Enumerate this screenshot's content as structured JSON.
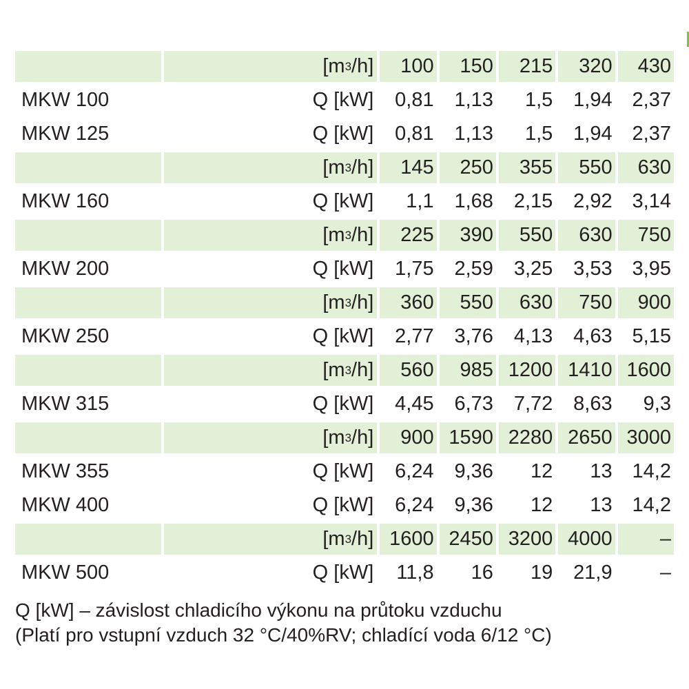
{
  "table": {
    "rows": [
      {
        "shaded": true,
        "model": "",
        "unit": "[m3/h]",
        "values": [
          "100",
          "150",
          "215",
          "320",
          "430"
        ]
      },
      {
        "shaded": false,
        "model": "MKW 100",
        "unit": "Q [kW]",
        "values": [
          "0,81",
          "1,13",
          "1,5",
          "1,94",
          "2,37"
        ]
      },
      {
        "shaded": false,
        "model": "MKW 125",
        "unit": "Q [kW]",
        "values": [
          "0,81",
          "1,13",
          "1,5",
          "1,94",
          "2,37"
        ]
      },
      {
        "shaded": true,
        "model": "",
        "unit": "[m3/h]",
        "values": [
          "145",
          "250",
          "355",
          "550",
          "630"
        ]
      },
      {
        "shaded": false,
        "model": "MKW 160",
        "unit": "Q [kW]",
        "values": [
          "1,1",
          "1,68",
          "2,15",
          "2,92",
          "3,14"
        ]
      },
      {
        "shaded": true,
        "model": "",
        "unit": "[m3/h]",
        "values": [
          "225",
          "390",
          "550",
          "630",
          "750"
        ]
      },
      {
        "shaded": false,
        "model": "MKW 200",
        "unit": "Q [kW]",
        "values": [
          "1,75",
          "2,59",
          "3,25",
          "3,53",
          "3,95"
        ]
      },
      {
        "shaded": true,
        "model": "",
        "unit": "[m3/h]",
        "values": [
          "360",
          "550",
          "630",
          "750",
          "900"
        ]
      },
      {
        "shaded": false,
        "model": "MKW 250",
        "unit": "Q [kW]",
        "values": [
          "2,77",
          "3,76",
          "4,13",
          "4,63",
          "5,15"
        ]
      },
      {
        "shaded": true,
        "model": "",
        "unit": "[m3/h]",
        "values": [
          "560",
          "985",
          "1200",
          "1410",
          "1600"
        ]
      },
      {
        "shaded": false,
        "model": "MKW 315",
        "unit": "Q [kW]",
        "values": [
          "4,45",
          "6,73",
          "7,72",
          "8,63",
          "9,3"
        ]
      },
      {
        "shaded": true,
        "model": "",
        "unit": "[m3/h]",
        "values": [
          "900",
          "1590",
          "2280",
          "2650",
          "3000"
        ]
      },
      {
        "shaded": false,
        "model": "MKW 355",
        "unit": "Q [kW]",
        "values": [
          "6,24",
          "9,36",
          "12",
          "13",
          "14,2"
        ]
      },
      {
        "shaded": false,
        "model": "MKW 400",
        "unit": "Q [kW]",
        "values": [
          "6,24",
          "9,36",
          "12",
          "13",
          "14,2"
        ]
      },
      {
        "shaded": true,
        "model": "",
        "unit": "[m3/h]",
        "values": [
          "1600",
          "2450",
          "3200",
          "4000",
          "–"
        ]
      },
      {
        "shaded": false,
        "model": "MKW 500",
        "unit": "Q [kW]",
        "values": [
          "11,8",
          "16",
          "19",
          "21,9",
          "–"
        ]
      }
    ]
  },
  "notes": {
    "line1": "Q [kW] – závislost chladicího výkonu na průtoku  vzduchu",
    "line2": "(Platí pro vstupní vzduch 32 °C/40%RV; chladící voda 6/12 °C)"
  },
  "colors": {
    "shade": "#e1f0d6",
    "accent": "#7dc242",
    "text": "#231f20"
  }
}
